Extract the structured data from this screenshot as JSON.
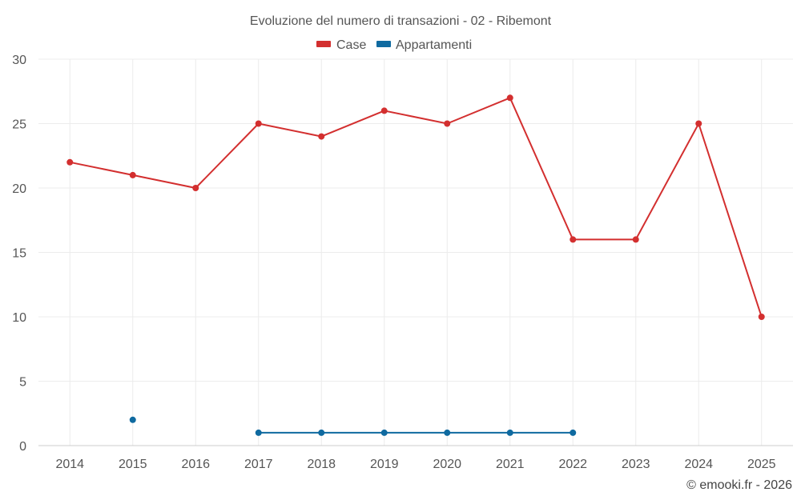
{
  "chart_data": {
    "type": "line",
    "title": "Evoluzione del numero di transazioni - 02 - Ribemont",
    "xlabel": "",
    "ylabel": "",
    "x": [
      "2014",
      "2015",
      "2016",
      "2017",
      "2018",
      "2019",
      "2020",
      "2021",
      "2022",
      "2023",
      "2024",
      "2025"
    ],
    "ylim": [
      0,
      30
    ],
    "yticks": [
      0,
      5,
      10,
      15,
      20,
      25,
      30
    ],
    "grid": true,
    "legend_position": "top-center",
    "series": [
      {
        "name": "Case",
        "color": "#d32f2f",
        "values": [
          22,
          21,
          20,
          25,
          24,
          26,
          25,
          27,
          16,
          16,
          25,
          10
        ]
      },
      {
        "name": "Appartamenti",
        "color": "#0f6aa0",
        "values": [
          null,
          2,
          null,
          1,
          1,
          1,
          1,
          1,
          1,
          null,
          null,
          null
        ]
      }
    ]
  },
  "credit": "© emooki.fr - 2026"
}
